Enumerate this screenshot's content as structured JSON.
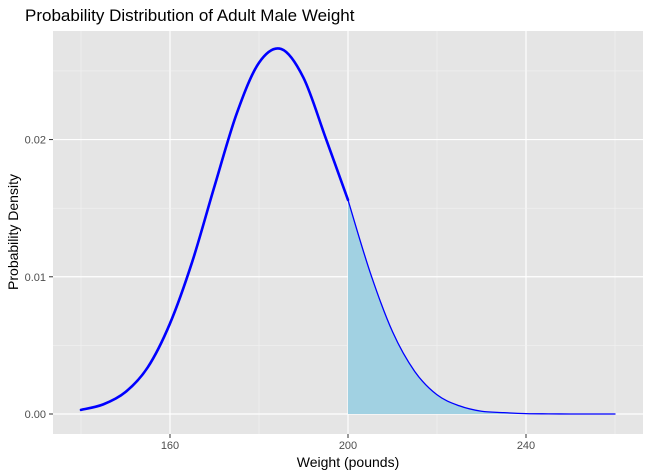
{
  "chart_data": {
    "type": "area",
    "title": "Probability Distribution of Adult Male Weight",
    "xlabel": "Weight (pounds)",
    "ylabel": "Probability Density",
    "xlim": [
      140,
      260
    ],
    "ylim": [
      0,
      0.0266
    ],
    "x_ticks": [
      {
        "value": 160,
        "label": "160"
      },
      {
        "value": 200,
        "label": "200"
      },
      {
        "value": 240,
        "label": "240"
      }
    ],
    "y_ticks": [
      {
        "value": 0.0,
        "label": "0.00"
      },
      {
        "value": 0.01,
        "label": "0.01"
      },
      {
        "value": 0.02,
        "label": "0.02"
      }
    ],
    "grid": true,
    "series": [
      {
        "kind": "density-curve",
        "color": "#0000ff",
        "x": [
          140,
          145,
          150,
          155,
          160,
          165,
          170,
          175,
          180,
          185,
          190,
          195,
          200,
          205,
          210,
          215,
          220,
          225,
          230,
          235,
          240,
          245,
          250,
          255,
          260
        ],
        "y": [
          0.0003,
          0.0007,
          0.0016,
          0.0034,
          0.0066,
          0.0111,
          0.0166,
          0.0219,
          0.0256,
          0.0266,
          0.0245,
          0.0201,
          0.0156,
          0.0103,
          0.006,
          0.0031,
          0.0014,
          0.0006,
          0.0002,
          0.0001,
          3e-05,
          1e-05,
          0.0,
          0.0,
          0.0
        ]
      },
      {
        "kind": "shaded-region",
        "fill": "#a1d1e2",
        "x": [
          200,
          205,
          210,
          215,
          220,
          225,
          230,
          235,
          240,
          245,
          250,
          255,
          260
        ],
        "y": [
          0.0156,
          0.0103,
          0.006,
          0.0031,
          0.0014,
          0.0006,
          0.0002,
          0.0001,
          3e-05,
          1e-05,
          0.0,
          0.0,
          0.0
        ]
      }
    ]
  }
}
